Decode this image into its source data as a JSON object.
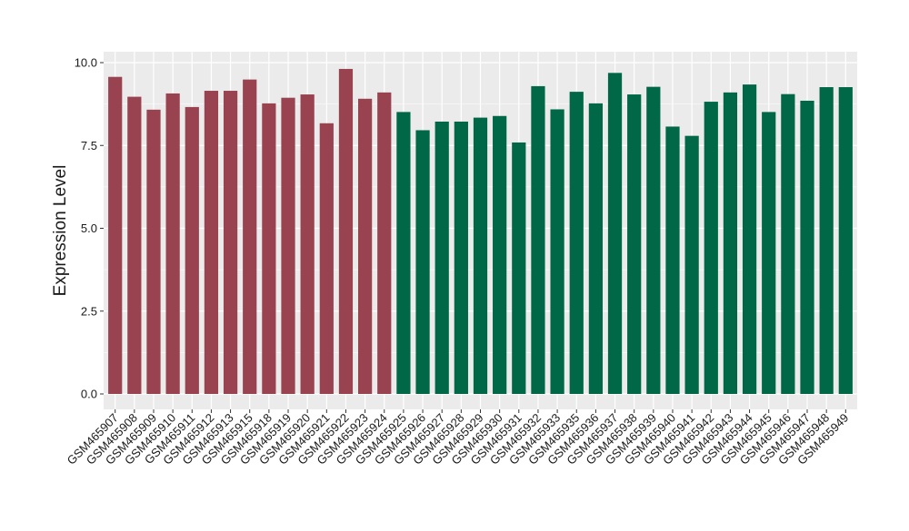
{
  "chart_data": {
    "type": "bar",
    "title": "",
    "xlabel": "",
    "ylabel": "Expression Level",
    "ylim": [
      0,
      10
    ],
    "yticks": [
      "0.0",
      "2.5",
      "5.0",
      "7.5",
      "10.0"
    ],
    "ytick_values": [
      0,
      2.5,
      5,
      7.5,
      10
    ],
    "grid": true,
    "colors": {
      "group1": "#9a4350",
      "group2": "#006847",
      "panel": "#ebebeb",
      "grid": "#ffffff"
    },
    "categories": [
      "GSM465907",
      "GSM465908",
      "GSM465909",
      "GSM465910",
      "GSM465911",
      "GSM465912",
      "GSM465913",
      "GSM465915",
      "GSM465918",
      "GSM465919",
      "GSM465920",
      "GSM465921",
      "GSM465922",
      "GSM465923",
      "GSM465924",
      "GSM465925",
      "GSM465926",
      "GSM465927",
      "GSM465928",
      "GSM465929",
      "GSM465930",
      "GSM465931",
      "GSM465932",
      "GSM465933",
      "GSM465935",
      "GSM465936",
      "GSM465937",
      "GSM465938",
      "GSM465939",
      "GSM465940",
      "GSM465941",
      "GSM465942",
      "GSM465943",
      "GSM465944",
      "GSM465945",
      "GSM465946",
      "GSM465947",
      "GSM465948",
      "GSM465949"
    ],
    "values": [
      9.57,
      8.97,
      8.58,
      9.07,
      8.66,
      9.15,
      9.15,
      9.49,
      8.77,
      8.94,
      9.04,
      8.17,
      9.81,
      8.91,
      9.1,
      8.51,
      7.96,
      8.22,
      8.22,
      8.34,
      8.39,
      7.59,
      9.29,
      8.59,
      9.12,
      8.77,
      9.69,
      9.04,
      9.27,
      8.07,
      7.79,
      8.82,
      9.1,
      9.34,
      8.51,
      9.05,
      8.85,
      9.26,
      9.26
    ],
    "groups": [
      1,
      1,
      1,
      1,
      1,
      1,
      1,
      1,
      1,
      1,
      1,
      1,
      1,
      1,
      1,
      2,
      2,
      2,
      2,
      2,
      2,
      2,
      2,
      2,
      2,
      2,
      2,
      2,
      2,
      2,
      2,
      2,
      2,
      2,
      2,
      2,
      2,
      2,
      2
    ]
  }
}
